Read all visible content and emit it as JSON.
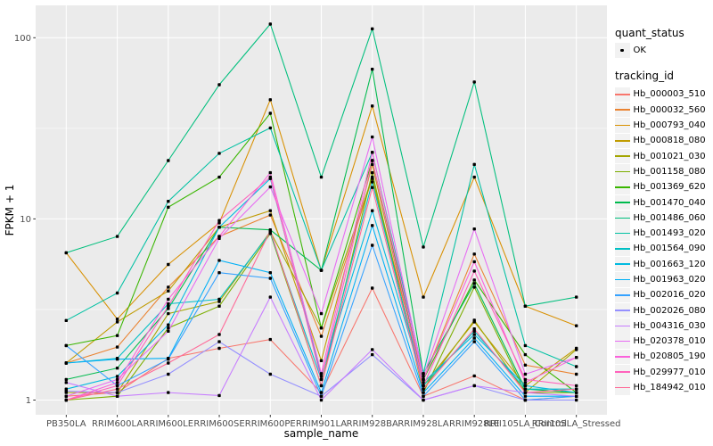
{
  "legend": {
    "quant_status_title": "quant_status",
    "quant_status_item": "OK",
    "tracking_id_title": "tracking_id"
  },
  "axes": {
    "x_title": "sample_name",
    "y_title": "FPKM + 1",
    "y_tick_labels": [
      "1",
      "10",
      "100"
    ]
  },
  "colors": {
    "panel_bg": "#EBEBEB",
    "grid": "#FFFFFF",
    "axis_text": "#4D4D4D",
    "tick_mark": "#333333",
    "axis_title": "#000000",
    "legend_key_bg": "#F2F2F2",
    "point_color": "#000000"
  },
  "chart_data": {
    "type": "line",
    "title": "",
    "xlabel": "sample_name",
    "ylabel": "FPKM + 1",
    "y_scale": "log10",
    "ylim": [
      0.83,
      150
    ],
    "y_ticks": [
      1,
      10,
      100
    ],
    "y_minor": [
      3.1623,
      31.623
    ],
    "grid": true,
    "legend_position": "right",
    "point_shape": "filled-square",
    "categories": [
      "PB350LA",
      "RRIM600LA",
      "RRIM600LE",
      "RRIM600SE",
      "RRIM600PE",
      "RRIM901LA",
      "RRIM928BA",
      "RRIM928LA",
      "RRIM928LE",
      "RRII105LA_Control",
      "RRII105LA_Stressed"
    ],
    "series": [
      {
        "name": "Hb_000003_510",
        "color": "#F8766D",
        "values": [
          1.05,
          1.1,
          1.7,
          1.93,
          2.16,
          1.1,
          4.15,
          1.05,
          1.36,
          1.0,
          1.05
        ]
      },
      {
        "name": "Hb_000032_560",
        "color": "#EA8331",
        "values": [
          1.6,
          1.96,
          4.2,
          8.0,
          10.5,
          2.25,
          16.7,
          1.3,
          6.4,
          1.56,
          1.39
        ]
      },
      {
        "name": "Hb_000793_040",
        "color": "#D89000",
        "values": [
          6.5,
          2.8,
          5.6,
          9.5,
          45.5,
          5.2,
          42.0,
          3.7,
          17.0,
          3.3,
          2.57
        ]
      },
      {
        "name": "Hb_000818_080",
        "color": "#C09B00",
        "values": [
          1.6,
          2.7,
          4.0,
          9.0,
          11.1,
          1.65,
          20.0,
          1.2,
          2.7,
          1.2,
          1.93
        ]
      },
      {
        "name": "Hb_001021_030",
        "color": "#A3A500",
        "values": [
          1.1,
          1.1,
          3.0,
          3.5,
          8.5,
          2.5,
          17.0,
          1.15,
          2.76,
          1.1,
          1.9
        ]
      },
      {
        "name": "Hb_001158_080",
        "color": "#7CAE00",
        "values": [
          1.0,
          1.05,
          2.5,
          3.3,
          8.3,
          1.2,
          18.0,
          1.1,
          4.2,
          1.1,
          1.1
        ]
      },
      {
        "name": "Hb_001369_620",
        "color": "#39B600",
        "values": [
          2.0,
          2.27,
          11.6,
          17.0,
          38.3,
          2.5,
          21.0,
          1.3,
          4.6,
          1.78,
          1.1
        ]
      },
      {
        "name": "Hb_001470_040",
        "color": "#00BB4E",
        "values": [
          1.3,
          1.5,
          3.2,
          9.0,
          8.7,
          5.2,
          67.0,
          1.4,
          4.4,
          1.15,
          1.1
        ]
      },
      {
        "name": "Hb_001486_060",
        "color": "#00BF7D",
        "values": [
          6.5,
          8.0,
          21.0,
          55.0,
          119.0,
          17.0,
          112.0,
          7.0,
          57.0,
          3.3,
          3.7
        ]
      },
      {
        "name": "Hb_001493_020",
        "color": "#00C1A3",
        "values": [
          2.75,
          3.9,
          12.5,
          23.0,
          31.8,
          5.2,
          23.3,
          1.4,
          20.0,
          2.0,
          1.53
        ]
      },
      {
        "name": "Hb_001564_090",
        "color": "#00BFC4",
        "values": [
          1.6,
          1.7,
          3.4,
          3.6,
          8.4,
          1.3,
          16.0,
          1.2,
          2.4,
          1.15,
          1.15
        ]
      },
      {
        "name": "Hb_001663_120",
        "color": "#00BAE0",
        "values": [
          1.15,
          1.35,
          2.6,
          9.0,
          16.7,
          1.35,
          11.1,
          1.25,
          2.3,
          1.2,
          1.1
        ]
      },
      {
        "name": "Hb_001963_020",
        "color": "#00B0F6",
        "values": [
          1.6,
          1.68,
          1.7,
          5.9,
          5.05,
          1.1,
          9.2,
          1.1,
          2.2,
          1.05,
          1.05
        ]
      },
      {
        "name": "Hb_002016_020",
        "color": "#35A2FF",
        "values": [
          2.0,
          1.2,
          1.68,
          5.05,
          4.7,
          1.05,
          7.15,
          1.05,
          2.1,
          1.0,
          1.05
        ]
      },
      {
        "name": "Hb_002026_080",
        "color": "#9590FF",
        "values": [
          1.12,
          1.1,
          1.39,
          2.1,
          1.39,
          1.05,
          1.78,
          1.0,
          1.2,
          1.0,
          1.0
        ]
      },
      {
        "name": "Hb_004316_030",
        "color": "#C77CFF",
        "values": [
          1.25,
          1.05,
          1.1,
          1.06,
          3.7,
          1.0,
          1.9,
          1.0,
          1.2,
          1.1,
          1.05
        ]
      },
      {
        "name": "Hb_020378_010",
        "color": "#E76BF3",
        "values": [
          1.05,
          1.3,
          2.4,
          7.8,
          15.0,
          3.0,
          28.3,
          1.35,
          8.8,
          1.39,
          1.72
        ]
      },
      {
        "name": "Hb_020805_190",
        "color": "#FA62DB",
        "values": [
          1.0,
          1.25,
          3.6,
          8.0,
          18.0,
          1.4,
          23.3,
          1.3,
          5.8,
          1.25,
          1.72
        ]
      },
      {
        "name": "Hb_029977_010",
        "color": "#FF62BC",
        "values": [
          1.0,
          1.2,
          3.3,
          9.8,
          17.0,
          1.3,
          21.0,
          1.2,
          5.15,
          1.3,
          1.2
        ]
      },
      {
        "name": "Hb_184942_010",
        "color": "#FF6A98",
        "values": [
          1.0,
          1.15,
          1.6,
          2.3,
          8.6,
          1.2,
          14.9,
          1.15,
          2.47,
          1.1,
          1.15
        ]
      }
    ]
  }
}
